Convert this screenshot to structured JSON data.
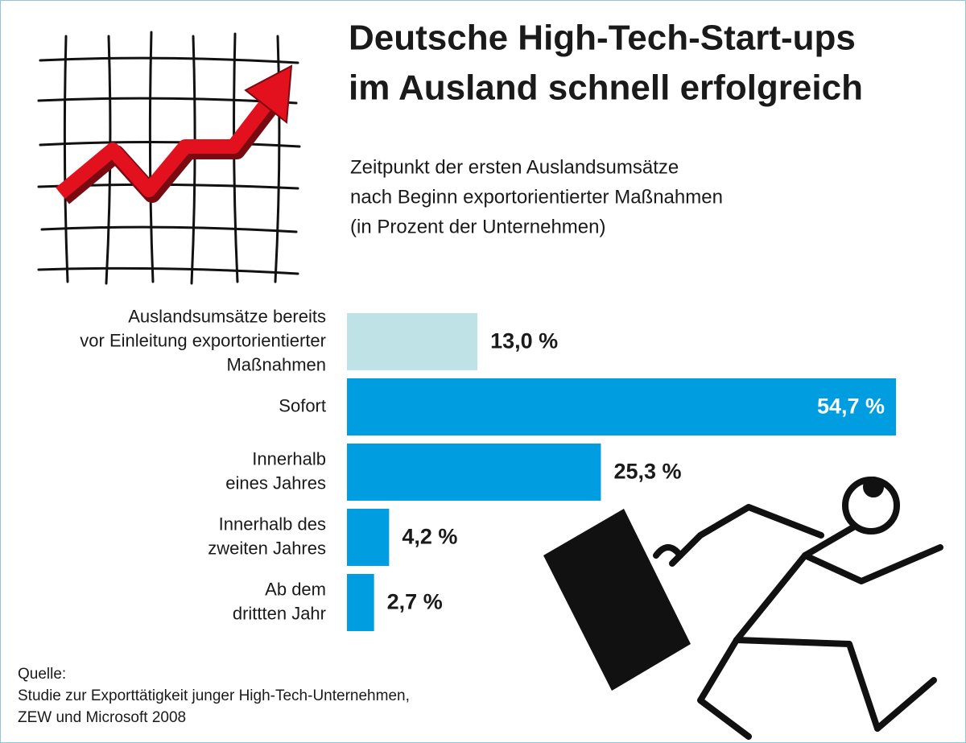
{
  "chart_data": {
    "type": "bar",
    "orientation": "horizontal",
    "title": [
      "Deutsche High-Tech-Start-ups",
      "im Ausland schnell erfolgreich"
    ],
    "subtitle": [
      "Zeitpunkt der ersten Auslandsumsätze",
      "nach Beginn exportorientierter Maßnahmen",
      "(in Prozent der Unternehmen)"
    ],
    "categories": [
      [
        "Auslandsumsätze bereits",
        "vor Einleitung exportorientierter",
        "Maßnahmen"
      ],
      [
        "Sofort"
      ],
      [
        "Innerhalb",
        "eines Jahres"
      ],
      [
        "Innerhalb des",
        "zweiten Jahres"
      ],
      [
        "Ab dem",
        "drittten Jahr"
      ]
    ],
    "values": [
      13.0,
      54.7,
      25.3,
      4.2,
      2.7
    ],
    "value_labels": [
      "13,0 %",
      "54,7 %",
      "25,3 %",
      "4,2 %",
      "2,7 %"
    ],
    "colors": [
      "#bfe2e6",
      "#009ee0",
      "#009ee0",
      "#009ee0",
      "#009ee0"
    ],
    "source": [
      "Quelle:",
      "Studie zur Exporttätigkeit junger High-Tech-Unternehmen,",
      "ZEW und Microsoft 2008"
    ]
  }
}
